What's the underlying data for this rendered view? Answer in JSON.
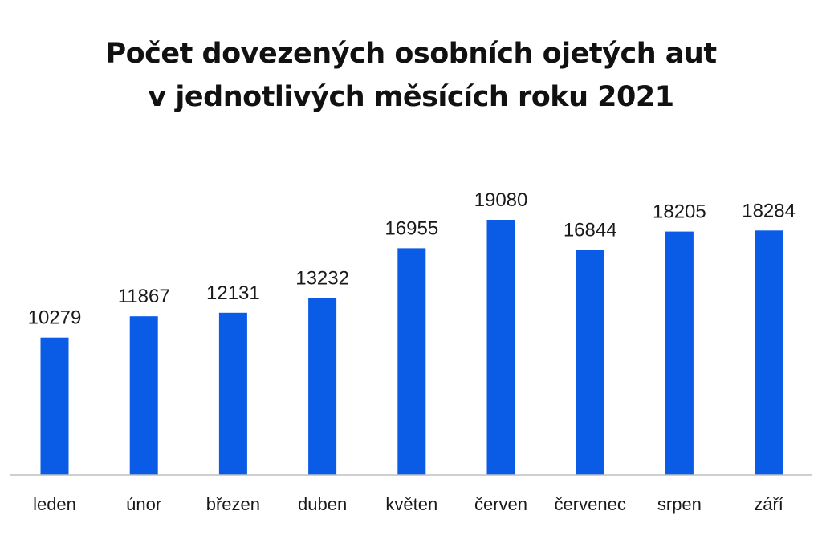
{
  "chart_data": {
    "type": "bar",
    "title": [
      "Počet dovezených osobních ojetých aut",
      "v jednotlivých měsících roku 2021"
    ],
    "xlabel": "",
    "ylabel": "",
    "categories": [
      "leden",
      "únor",
      "březen",
      "duben",
      "květen",
      "červen",
      "červenec",
      "srpen",
      "září"
    ],
    "values": [
      10279,
      11867,
      12131,
      13232,
      16955,
      19080,
      16844,
      18205,
      18284
    ],
    "ylim": [
      0,
      19080
    ],
    "grid": false,
    "legend": "none",
    "bar_color": "#0a5be6"
  }
}
